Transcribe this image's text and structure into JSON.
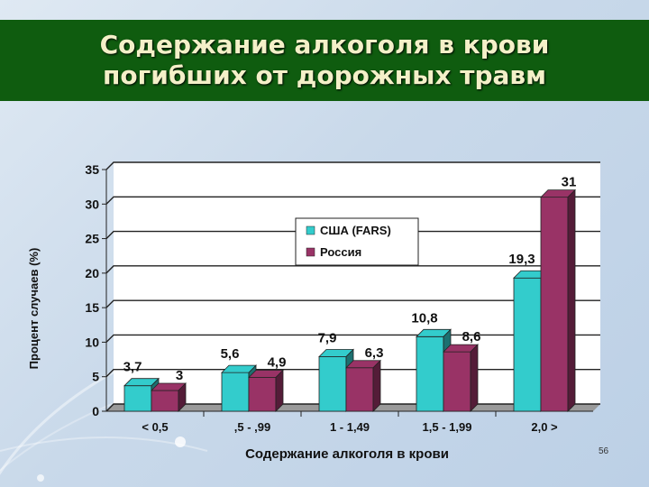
{
  "slide": {
    "title_line1": "Содержание алкоголя в крови",
    "title_line2": "погибших от дорожных травм",
    "slide_number": "56"
  },
  "chart_data": {
    "type": "bar",
    "title": "Содержание алкоголя в крови погибших от дорожных травм",
    "xlabel": "Содержание алкоголя в крови",
    "ylabel": "Процент случаев (%)",
    "categories": [
      "< 0,5",
      ",5 - ,99",
      "1 - 1,49",
      "1,5 - 1,99",
      "2,0 >"
    ],
    "ylim": [
      0,
      35
    ],
    "yticks": [
      0,
      5,
      10,
      15,
      20,
      25,
      30,
      35
    ],
    "grid": true,
    "legend": "top-center",
    "series": [
      {
        "name": "США (FARS)",
        "color": "#33cccc",
        "values": [
          3.7,
          5.6,
          7.9,
          10.8,
          19.3
        ],
        "labels": [
          "3,7",
          "5,6",
          "7,9",
          "10,8",
          "19,3"
        ]
      },
      {
        "name": "Россия",
        "color": "#993366",
        "values": [
          3,
          4.9,
          6.3,
          8.6,
          31
        ],
        "labels": [
          "3",
          "4,9",
          "6,3",
          "8,6",
          "31"
        ]
      }
    ]
  }
}
